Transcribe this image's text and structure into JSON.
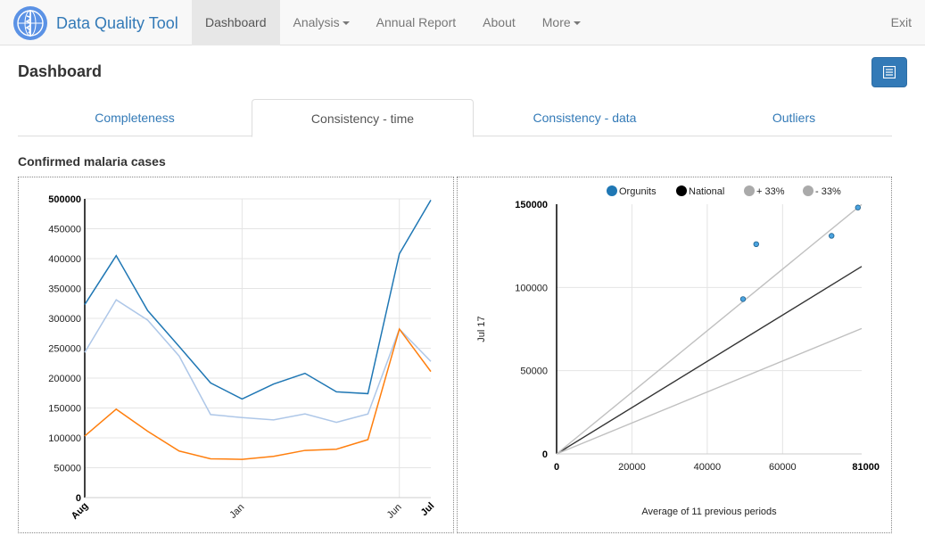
{
  "app": {
    "brand": "Data Quality Tool",
    "logo": "who-emblem-icon"
  },
  "nav": {
    "items": [
      {
        "label": "Dashboard",
        "active": true,
        "caret": false
      },
      {
        "label": "Analysis",
        "active": false,
        "caret": true
      },
      {
        "label": "Annual Report",
        "active": false,
        "caret": false
      },
      {
        "label": "About",
        "active": false,
        "caret": false
      },
      {
        "label": "More",
        "active": false,
        "caret": true
      }
    ],
    "exit_label": "Exit"
  },
  "page": {
    "title": "Dashboard",
    "report_button_icon": "list-document-icon"
  },
  "tabs": [
    {
      "label": "Completeness",
      "active": false
    },
    {
      "label": "Consistency - time",
      "active": true
    },
    {
      "label": "Consistency - data",
      "active": false
    },
    {
      "label": "Outliers",
      "active": false
    }
  ],
  "section_title": "Confirmed malaria cases",
  "colors": {
    "series_blue": "#1f77b4",
    "series_lightblue": "#aec7e8",
    "series_orange": "#ff7f0e",
    "national": "#333333",
    "band": "#c0c0c0",
    "link": "#337ab7"
  },
  "chart_data": [
    {
      "type": "line",
      "x_ticks": [
        "Aug",
        "Jan",
        "Jun",
        "Jul"
      ],
      "ylim": [
        0,
        500000
      ],
      "y_ticks": [
        "0",
        "50000",
        "100000",
        "150000",
        "200000",
        "250000",
        "300000",
        "350000",
        "400000",
        "450000",
        "500000"
      ],
      "grid": true,
      "series": [
        {
          "color": "#1f77b4",
          "values": [
            323000,
            405000,
            313000,
            253000,
            192000,
            165000,
            190000,
            208000,
            177000,
            174000,
            408000,
            498000
          ]
        },
        {
          "color": "#aec7e8",
          "values": [
            243000,
            331000,
            297000,
            237000,
            139000,
            134000,
            130000,
            140000,
            126000,
            140000,
            282000,
            228000
          ]
        },
        {
          "color": "#ff7f0e",
          "values": [
            103000,
            148000,
            111000,
            78000,
            65000,
            64000,
            69000,
            79000,
            81000,
            97000,
            282000,
            211000
          ]
        }
      ]
    },
    {
      "type": "scatter",
      "legend": [
        {
          "label": "Orgunits",
          "color": "#1f77b4"
        },
        {
          "label": "National",
          "color": "#000000"
        },
        {
          "label": "+ 33%",
          "color": "#aaaaaa"
        },
        {
          "label": "- 33%",
          "color": "#aaaaaa"
        }
      ],
      "legend_position": "top",
      "xlabel": "Average of 11 previous periods",
      "ylabel": "Jul 17",
      "xlim": [
        0,
        81000
      ],
      "ylim": [
        0,
        150000
      ],
      "x_ticks": [
        "0",
        "20000",
        "40000",
        "60000",
        "81000"
      ],
      "y_ticks": [
        "0",
        "50000",
        "100000",
        "150000"
      ],
      "points": [
        {
          "x": 49500,
          "y": 93000
        },
        {
          "x": 53000,
          "y": 126000
        },
        {
          "x": 73000,
          "y": 131000
        },
        {
          "x": 80000,
          "y": 148000
        }
      ],
      "lines": [
        {
          "name": "National",
          "slope": 1.39
        },
        {
          "name": "+ 33%",
          "slope": 1.85
        },
        {
          "name": "- 33%",
          "slope": 0.93
        }
      ],
      "grid": true
    }
  ]
}
